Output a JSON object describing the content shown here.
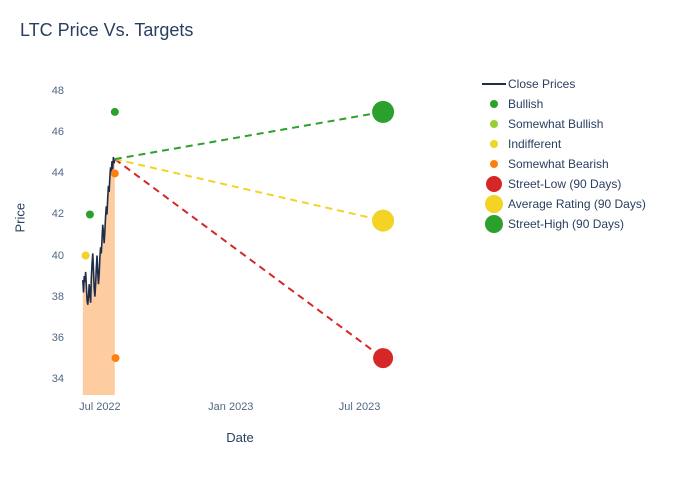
{
  "title": "LTC Price Vs. Targets",
  "chart": {
    "type": "line+scatter",
    "xlabel": "Date",
    "ylabel": "Price",
    "background_color": "#ffffff",
    "text_color": "#2a3f5f",
    "tick_color": "#506784",
    "ylim": [
      33.2,
      48.8
    ],
    "yticks": [
      34,
      36,
      38,
      40,
      42,
      44,
      46,
      48
    ],
    "x_range_days": 520,
    "x_start": "2022-05-20",
    "xticks": [
      {
        "label": "Jul 2022",
        "day": 42
      },
      {
        "label": "Jan 2023",
        "day": 226
      },
      {
        "label": "Jul 2023",
        "day": 407
      }
    ],
    "close_fill_color": "#fdbf86",
    "close_fill_opacity": 0.78,
    "close_line_color": "#1f2d4a",
    "close_line_width": 1.6,
    "close_prices": {
      "start_day": 18,
      "values": [
        38.8,
        38.2,
        39.0,
        38.7,
        39.2,
        38.5,
        37.8,
        37.6,
        38.0,
        38.6,
        38.1,
        37.7,
        38.9,
        39.6,
        40.1,
        39.3,
        38.4,
        38.0,
        38.6,
        39.4,
        40.0,
        39.2,
        38.6,
        39.1,
        39.9,
        40.4,
        40.1,
        40.8,
        41.5,
        41.1,
        40.6,
        41.2,
        41.9,
        42.4,
        42.0,
        42.8,
        43.4,
        43.1,
        43.8,
        44.3,
        44.0,
        44.6,
        44.2,
        44.8,
        44.5,
        44.7
      ]
    },
    "analyst_points": [
      {
        "label": "Bullish",
        "color": "#2ca02c",
        "r": 4,
        "points": [
          {
            "day": 28,
            "val": 42.0
          },
          {
            "day": 63,
            "val": 47.0
          }
        ]
      },
      {
        "label": "Somewhat Bullish",
        "color": "#9acd32",
        "r": 4,
        "points": []
      },
      {
        "label": "Indifferent",
        "color": "#f2d326",
        "r": 4,
        "points": [
          {
            "day": 22,
            "val": 40.0
          }
        ]
      },
      {
        "label": "Somewhat Bearish",
        "color": "#ff7f0e",
        "r": 4,
        "points": [
          {
            "day": 63,
            "val": 44.0
          },
          {
            "day": 64,
            "val": 35.0
          }
        ]
      }
    ],
    "projection_start": {
      "day": 63,
      "val": 44.7
    },
    "projections": [
      {
        "label": "Street-Low (90 Days)",
        "color": "#d62728",
        "target_day": 440,
        "target_val": 35.0,
        "dash": "7,5",
        "marker_r": 10
      },
      {
        "label": "Average Rating (90 Days)",
        "color": "#f2d326",
        "target_day": 440,
        "target_val": 41.7,
        "dash": "7,5",
        "marker_r": 11
      },
      {
        "label": "Street-High (90 Days)",
        "color": "#2ca02c",
        "target_day": 440,
        "target_val": 47.0,
        "dash": "7,5",
        "marker_r": 11
      }
    ],
    "title_fontsize": 18,
    "label_fontsize": 13,
    "tick_fontsize": 11
  },
  "legend": [
    {
      "type": "line",
      "label": "Close Prices",
      "color": "#1f2d4a"
    },
    {
      "type": "dot",
      "label": "Bullish",
      "color": "#2ca02c",
      "r": 4
    },
    {
      "type": "dot",
      "label": "Somewhat Bullish",
      "color": "#9acd32",
      "r": 4
    },
    {
      "type": "dot",
      "label": "Indifferent",
      "color": "#f2d326",
      "r": 4
    },
    {
      "type": "dot",
      "label": "Somewhat Bearish",
      "color": "#ff7f0e",
      "r": 4
    },
    {
      "type": "dot",
      "label": "Street-Low (90 Days)",
      "color": "#d62728",
      "r": 8
    },
    {
      "type": "dot",
      "label": "Average Rating (90 Days)",
      "color": "#f2d326",
      "r": 9
    },
    {
      "type": "dot",
      "label": "Street-High (90 Days)",
      "color": "#2ca02c",
      "r": 9
    }
  ]
}
